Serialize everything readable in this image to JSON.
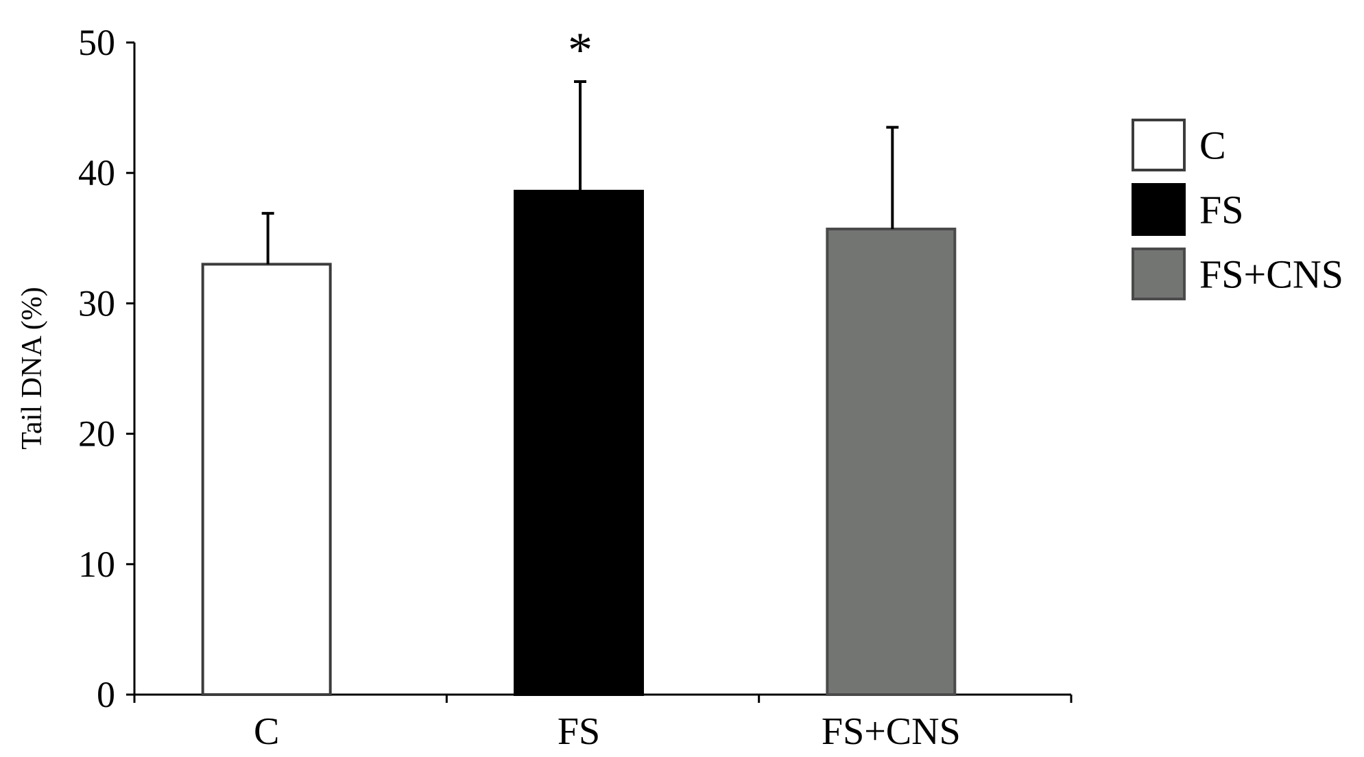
{
  "chart_data": {
    "type": "bar",
    "categories": [
      "C",
      "FS",
      "FS+CNS"
    ],
    "series": [
      {
        "values": [
          33,
          38.6,
          35.7
        ],
        "errors": [
          3.9,
          8.4,
          7.8
        ],
        "colors": [
          "#ffffff",
          "#000000",
          "#737573"
        ],
        "edge_colors": [
          "#3c3c3c",
          "#000000",
          "#4a4a4a"
        ]
      }
    ],
    "ylabel": "Tail DNA (%)",
    "xlabel": "",
    "ylim": [
      0,
      50
    ],
    "yticks": [
      "0",
      "10",
      "20",
      "30",
      "40",
      "50"
    ],
    "grid": false,
    "legend": {
      "placement": "right",
      "entries": [
        "C",
        "FS",
        "FS+CNS"
      ]
    },
    "annotations": [
      {
        "category": "FS",
        "text": "*"
      }
    ]
  }
}
